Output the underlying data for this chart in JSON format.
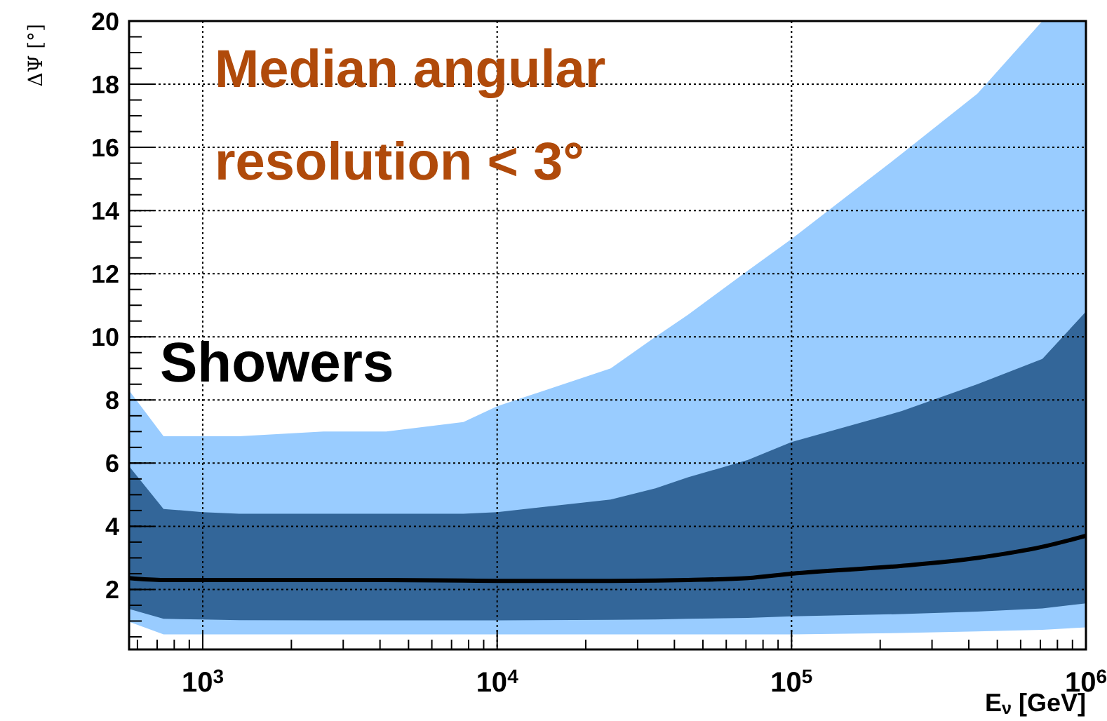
{
  "chart_data": {
    "type": "line",
    "xlabel": "E$_{ν}$ [GeV]",
    "ylabel": "ΔΨ [°]",
    "annotations": [
      "Median angular resolution < 3°",
      "Showers"
    ],
    "log": "x",
    "grid": true,
    "xlim": [
      562,
      1000000
    ],
    "ylim": [
      0.1,
      20
    ],
    "xticks": [
      {
        "value": 1000,
        "label": "10$^{3}$"
      },
      {
        "value": 10000,
        "label": "10$^{4}$"
      },
      {
        "value": 100000,
        "label": "10$^{5}$"
      },
      {
        "value": 1000000,
        "label": "10$^{6}$"
      }
    ],
    "yticks": [
      2,
      4,
      6,
      8,
      10,
      12,
      14,
      16,
      18,
      20
    ],
    "x": [
      562,
      736,
      1000,
      1330,
      2570,
      4200,
      7680,
      10000,
      24300,
      34500,
      44500,
      71100,
      100000,
      237000,
      428000,
      711000,
      1000000
    ],
    "series": [
      {
        "color": "#000000",
        "values": [
          2.36,
          2.3,
          2.3,
          2.3,
          2.3,
          2.3,
          2.28,
          2.27,
          2.27,
          2.28,
          2.3,
          2.36,
          2.5,
          2.75,
          3.0,
          3.35,
          3.7
        ],
        "lower": [
          0.98,
          0.58,
          0.58,
          0.58,
          0.58,
          0.58,
          0.58,
          0.58,
          0.58,
          0.58,
          0.58,
          0.58,
          0.58,
          0.62,
          0.67,
          0.72,
          0.8
        ],
        "upper": [
          8.3,
          6.85,
          6.85,
          6.85,
          7.0,
          7.0,
          7.3,
          7.8,
          9.0,
          10.0,
          10.7,
          12.1,
          13.1,
          15.8,
          17.7,
          20,
          20
        ]
      },
      {
        "values": [
          null,
          null,
          null,
          null,
          null,
          null,
          null,
          null,
          null,
          null,
          null,
          null,
          null,
          null,
          null,
          null,
          null
        ],
        "lower": [
          1.38,
          1.07,
          1.05,
          1.03,
          1.02,
          1.02,
          1.02,
          1.02,
          1.04,
          1.05,
          1.07,
          1.1,
          1.15,
          1.22,
          1.3,
          1.4,
          1.56
        ],
        "upper": [
          5.9,
          4.55,
          4.45,
          4.4,
          4.4,
          4.4,
          4.4,
          4.45,
          4.85,
          5.2,
          5.55,
          6.1,
          6.67,
          7.65,
          8.5,
          9.3,
          10.8
        ]
      }
    ]
  }
}
